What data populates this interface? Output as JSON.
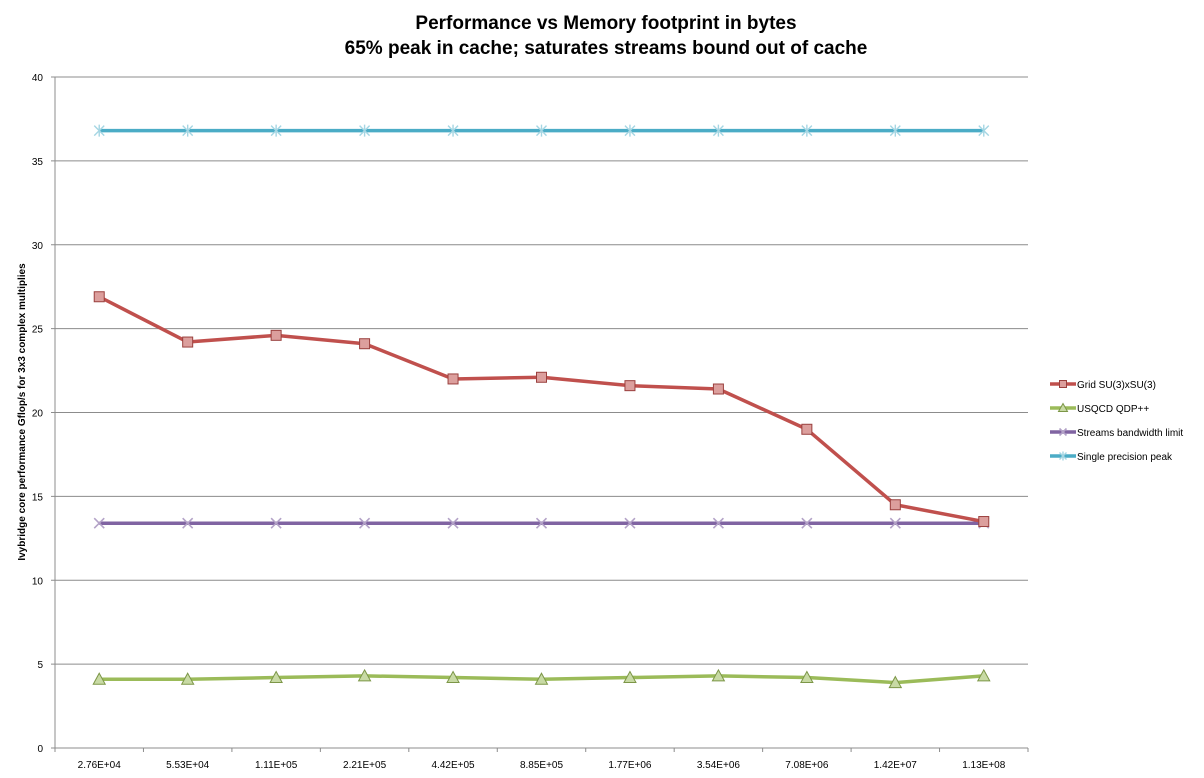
{
  "chart_data": {
    "type": "line",
    "title": "Performance vs Memory footprint in bytes",
    "subtitle": "65% peak in cache; saturates streams bound out of cache",
    "xlabel": "",
    "ylabel": "Ivybridge core performance Gflop/s for 3x3 complex multiplies",
    "categories": [
      "2.76E+04",
      "5.53E+04",
      "1.11E+05",
      "2.21E+05",
      "4.42E+05",
      "8.85E+05",
      "1.77E+06",
      "3.54E+06",
      "7.08E+06",
      "1.42E+07",
      "1.13E+08"
    ],
    "ylim": [
      0,
      40
    ],
    "yticks": [
      "0",
      "5",
      "10",
      "15",
      "20",
      "25",
      "30",
      "35",
      "40"
    ],
    "grid": true,
    "legend_position": "right",
    "series": [
      {
        "name": "Grid SU(3)xSU(3)",
        "color": "#c0504d",
        "marker": "square",
        "values": [
          26.9,
          24.2,
          24.6,
          24.1,
          22.0,
          22.1,
          21.6,
          21.4,
          19.0,
          14.5,
          13.5
        ]
      },
      {
        "name": "USQCD QDP++",
        "color": "#9bbb59",
        "marker": "triangle",
        "values": [
          4.1,
          4.1,
          4.2,
          4.3,
          4.2,
          4.1,
          4.2,
          4.3,
          4.2,
          3.9,
          4.3
        ]
      },
      {
        "name": "Streams bandwidth limit",
        "color": "#8064a2",
        "marker": "x",
        "values": [
          13.4,
          13.4,
          13.4,
          13.4,
          13.4,
          13.4,
          13.4,
          13.4,
          13.4,
          13.4,
          13.4
        ]
      },
      {
        "name": "Single precision peak",
        "color": "#4bacc6",
        "marker": "star",
        "values": [
          36.8,
          36.8,
          36.8,
          36.8,
          36.8,
          36.8,
          36.8,
          36.8,
          36.8,
          36.8,
          36.8
        ]
      }
    ]
  }
}
